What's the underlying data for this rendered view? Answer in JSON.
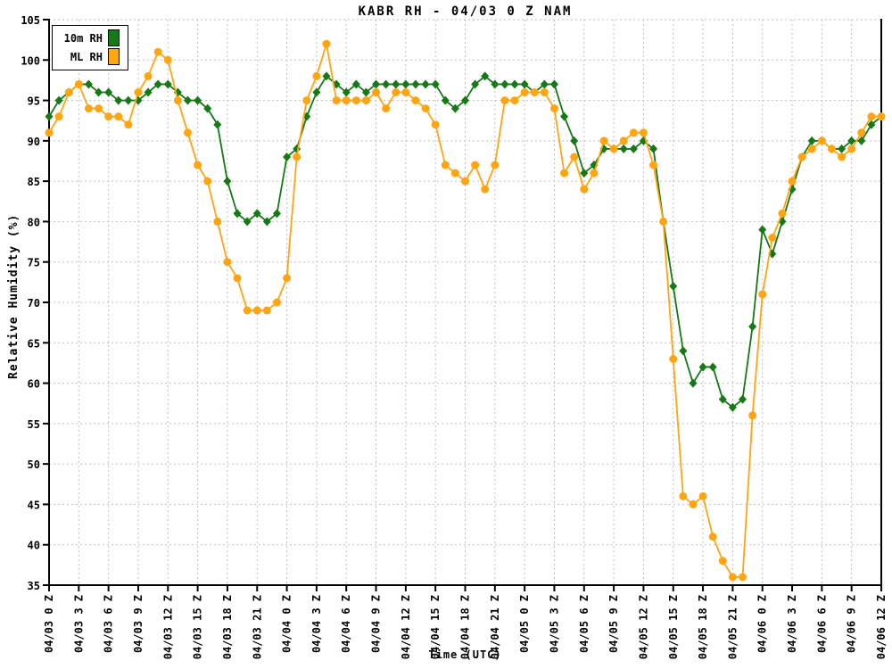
{
  "title": "KABR RH - 04/03 0 Z NAM",
  "colors": {
    "background": "#ffffff",
    "axis": "#000000",
    "grid": "#c0c0c0",
    "series_10m": "#167816",
    "series_ml": "#ffa512"
  },
  "chart_data": {
    "type": "line",
    "title": "KABR RH - 04/03 0 Z NAM",
    "xlabel": "Time (UTC)",
    "ylabel": "Relative Humidity (%)",
    "ylim": [
      35,
      105
    ],
    "y_ticks": [
      35,
      40,
      45,
      50,
      55,
      60,
      65,
      70,
      75,
      80,
      85,
      90,
      95,
      100,
      105
    ],
    "grid": true,
    "legend_position": "top-left",
    "x_tick_interval_hours": 3,
    "points_interval_hours": 1,
    "x_tick_labels": [
      "04/03 0 Z",
      "04/03 3 Z",
      "04/03 6 Z",
      "04/03 9 Z",
      "04/03 12 Z",
      "04/03 15 Z",
      "04/03 18 Z",
      "04/03 21 Z",
      "04/04 0 Z",
      "04/04 3 Z",
      "04/04 6 Z",
      "04/04 9 Z",
      "04/04 12 Z",
      "04/04 15 Z",
      "04/04 18 Z",
      "04/04 21 Z",
      "04/05 0 Z",
      "04/05 3 Z",
      "04/05 6 Z",
      "04/05 9 Z",
      "04/05 12 Z",
      "04/05 15 Z",
      "04/05 18 Z",
      "04/05 21 Z",
      "04/06 0 Z",
      "04/06 3 Z",
      "04/06 6 Z",
      "04/06 9 Z",
      "04/06 12 Z"
    ],
    "series": [
      {
        "name": "10m RH",
        "color": "#167816",
        "marker": "diamond",
        "values": [
          93,
          95,
          96,
          97,
          97,
          96,
          96,
          95,
          95,
          95,
          96,
          97,
          97,
          96,
          95,
          95,
          94,
          92,
          85,
          81,
          80,
          81,
          80,
          81,
          88,
          89,
          93,
          96,
          98,
          97,
          96,
          97,
          96,
          97,
          97,
          97,
          97,
          97,
          97,
          97,
          95,
          94,
          95,
          97,
          98,
          97,
          97,
          97,
          97,
          96,
          97,
          97,
          93,
          90,
          86,
          87,
          89,
          89,
          89,
          89,
          90,
          89,
          80,
          72,
          64,
          60,
          62,
          62,
          58,
          57,
          58,
          67,
          79,
          76,
          80,
          84,
          88,
          90,
          90,
          89,
          89,
          90,
          90,
          92,
          93
        ]
      },
      {
        "name": "ML RH",
        "color": "#ffa512",
        "marker": "circle",
        "values": [
          91,
          93,
          96,
          97,
          94,
          94,
          93,
          93,
          92,
          96,
          98,
          101,
          100,
          95,
          91,
          87,
          85,
          80,
          75,
          73,
          69,
          69,
          69,
          70,
          73,
          88,
          95,
          98,
          102,
          95,
          95,
          95,
          95,
          96,
          94,
          96,
          96,
          95,
          94,
          92,
          87,
          86,
          85,
          87,
          84,
          87,
          95,
          95,
          96,
          96,
          96,
          94,
          86,
          88,
          84,
          86,
          90,
          89,
          90,
          91,
          91,
          87,
          80,
          63,
          46,
          45,
          46,
          41,
          38,
          36,
          36,
          56,
          71,
          78,
          81,
          85,
          88,
          89,
          90,
          89,
          88,
          89,
          91,
          93,
          93
        ]
      }
    ]
  }
}
